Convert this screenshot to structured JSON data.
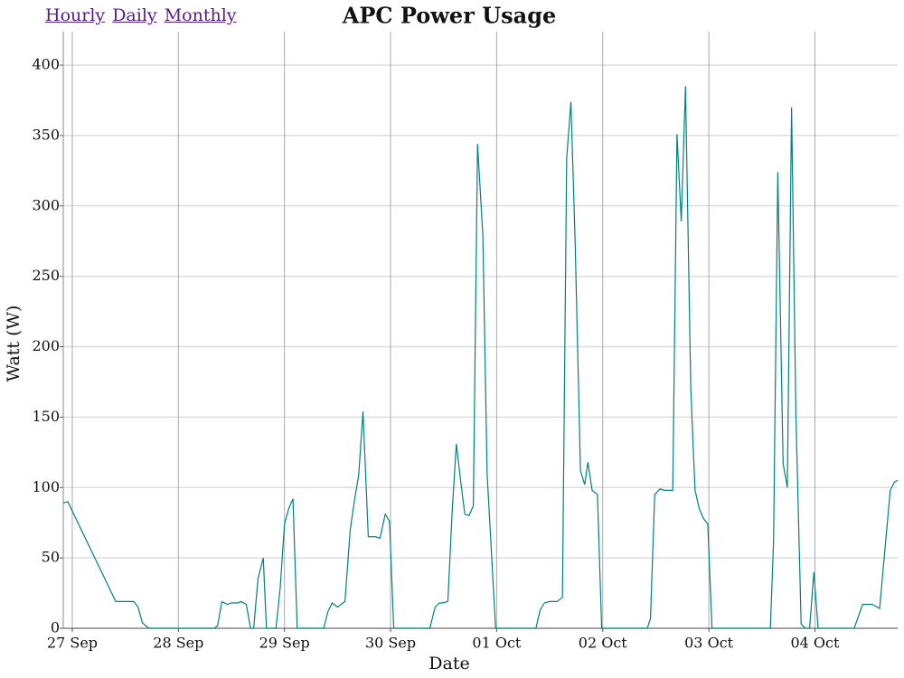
{
  "nav": [
    "Hourly",
    "Daily",
    "Monthly"
  ],
  "chart_data": {
    "type": "line",
    "title": "APC Power Usage",
    "xlabel": "Date",
    "ylabel": "Watt (W)",
    "color": "#008080",
    "grid": true,
    "xlim": [
      -0.085,
      7.78
    ],
    "ylim": [
      0,
      423.8
    ],
    "xticks": [
      {
        "value": 0,
        "label": "27 Sep"
      },
      {
        "value": 1,
        "label": "28 Sep"
      },
      {
        "value": 2,
        "label": "29 Sep"
      },
      {
        "value": 3,
        "label": "30 Sep"
      },
      {
        "value": 4,
        "label": "01 Oct"
      },
      {
        "value": 5,
        "label": "02 Oct"
      },
      {
        "value": 6,
        "label": "03 Oct"
      },
      {
        "value": 7,
        "label": "04 Oct"
      }
    ],
    "yticks": [
      0,
      50,
      100,
      150,
      200,
      250,
      300,
      350,
      400
    ],
    "x": [
      -0.085,
      -0.043,
      0.41,
      0.58,
      0.62,
      0.66,
      0.72,
      1.34,
      1.37,
      1.41,
      1.46,
      1.5,
      1.56,
      1.59,
      1.64,
      1.68,
      1.71,
      1.75,
      1.8,
      1.83,
      1.92,
      1.96,
      2.0,
      2.04,
      2.08,
      2.12,
      2.37,
      2.41,
      2.45,
      2.5,
      2.57,
      2.62,
      2.66,
      2.7,
      2.74,
      2.79,
      2.86,
      2.9,
      2.95,
      2.99,
      3.03,
      3.37,
      3.42,
      3.46,
      3.49,
      3.54,
      3.58,
      3.62,
      3.66,
      3.7,
      3.74,
      3.78,
      3.82,
      3.87,
      3.91,
      3.99,
      4.37,
      4.41,
      4.45,
      4.5,
      4.57,
      4.62,
      4.66,
      4.7,
      4.74,
      4.79,
      4.83,
      4.86,
      4.9,
      4.95,
      4.99,
      5.42,
      5.45,
      5.49,
      5.54,
      5.58,
      5.66,
      5.7,
      5.74,
      5.78,
      5.83,
      5.87,
      5.91,
      5.95,
      5.99,
      6.03,
      6.58,
      6.61,
      6.65,
      6.7,
      6.74,
      6.78,
      6.82,
      6.87,
      6.91,
      6.95,
      6.99,
      7.03,
      7.37,
      7.45,
      7.54,
      7.61,
      7.71,
      7.75,
      7.78
    ],
    "values": [
      89,
      90,
      19,
      19,
      15,
      4,
      0,
      0,
      2,
      19,
      17,
      18,
      18,
      19,
      17,
      0,
      0,
      35,
      50,
      0,
      0,
      29,
      74,
      85,
      92,
      0,
      0,
      12,
      18,
      15,
      19,
      70,
      91,
      109,
      154,
      65,
      65,
      64,
      81,
      76,
      0,
      0,
      15,
      18,
      18,
      19,
      82,
      131,
      105,
      81,
      80,
      87,
      344,
      279,
      110,
      0,
      0,
      13,
      18,
      19,
      19,
      22,
      334,
      374,
      274,
      112,
      102,
      118,
      98,
      95,
      0,
      0,
      7,
      95,
      99,
      98,
      98,
      351,
      289,
      385,
      170,
      98,
      85,
      78,
      74,
      0,
      0,
      61,
      324,
      117,
      100,
      370,
      154,
      3,
      0,
      0,
      40,
      0,
      0,
      17,
      17,
      14,
      98,
      104,
      105
    ]
  }
}
